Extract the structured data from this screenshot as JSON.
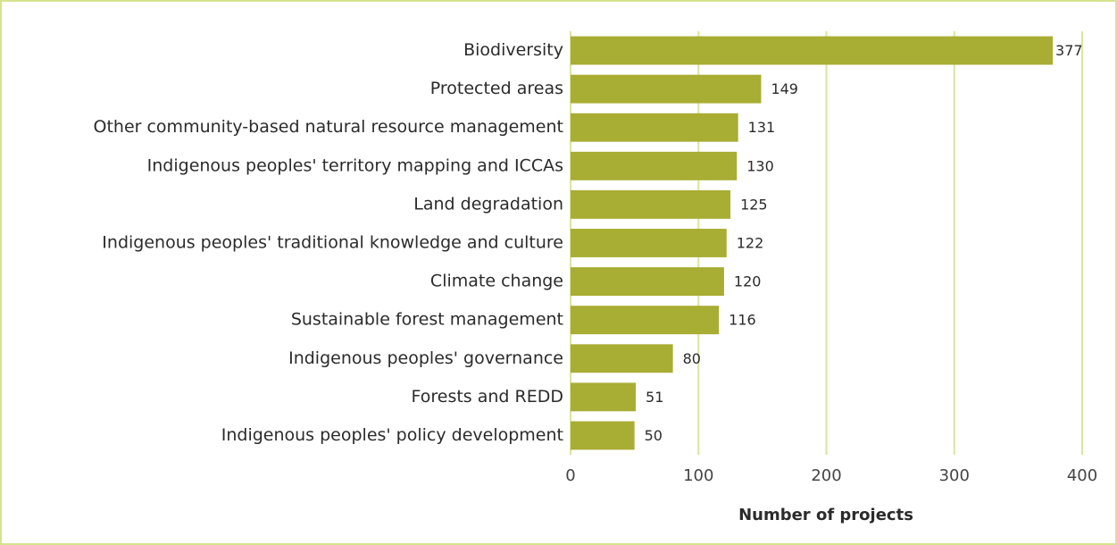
{
  "chart_data": {
    "type": "bar",
    "orientation": "horizontal",
    "categories": [
      "Biodiversity",
      "Protected areas",
      "Other community-based natural resource management",
      "Indigenous peoples' territory mapping and ICCAs",
      "Land degradation",
      "Indigenous peoples' traditional knowledge and culture",
      "Climate change",
      "Sustainable forest management",
      "Indigenous peoples' governance",
      "Forests and REDD",
      "Indigenous peoples' policy development"
    ],
    "values": [
      377,
      149,
      131,
      130,
      125,
      122,
      120,
      116,
      80,
      51,
      50
    ],
    "color": "#a8ad33",
    "xlabel": "Number of projects",
    "xlim": [
      0,
      400
    ],
    "xticks": [
      0,
      100,
      200,
      300,
      400
    ],
    "grid": true
  }
}
